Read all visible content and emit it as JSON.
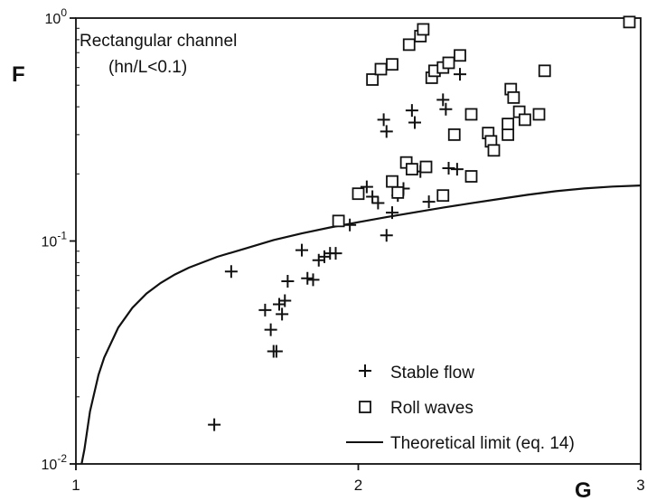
{
  "chart_data": {
    "type": "scatter",
    "title": "Rectangular channel",
    "subtitle": "(hn/L<0.1)",
    "xlabel": "G",
    "ylabel": "F",
    "xlim": [
      1,
      3
    ],
    "ylim": [
      0.01,
      1
    ],
    "yscale": "log",
    "x_ticks": [
      1,
      2,
      3
    ],
    "x_tick_labels": [
      "1",
      "2",
      "3"
    ],
    "y_ticks": [
      0.01,
      0.1,
      1
    ],
    "y_tick_labels": [
      {
        "base": "10",
        "exp": "-2"
      },
      {
        "base": "10",
        "exp": "-1"
      },
      {
        "base": "10",
        "exp": "0"
      }
    ],
    "legend_position": "bottom-right",
    "grid": false,
    "series": [
      {
        "name": "Stable flow",
        "marker": "plus",
        "points": [
          [
            1.49,
            0.015
          ],
          [
            1.55,
            0.073
          ],
          [
            1.67,
            0.049
          ],
          [
            1.69,
            0.04
          ],
          [
            1.7,
            0.032
          ],
          [
            1.71,
            0.032
          ],
          [
            1.72,
            0.052
          ],
          [
            1.73,
            0.047
          ],
          [
            1.74,
            0.054
          ],
          [
            1.75,
            0.066
          ],
          [
            1.8,
            0.091
          ],
          [
            1.82,
            0.068
          ],
          [
            1.84,
            0.067
          ],
          [
            1.86,
            0.082
          ],
          [
            1.88,
            0.085
          ],
          [
            1.9,
            0.088
          ],
          [
            1.92,
            0.088
          ],
          [
            1.97,
            0.118
          ],
          [
            2.03,
            0.175
          ],
          [
            2.05,
            0.158
          ],
          [
            2.07,
            0.148
          ],
          [
            2.09,
            0.35
          ],
          [
            2.1,
            0.31
          ],
          [
            2.1,
            0.106
          ],
          [
            2.12,
            0.134
          ],
          [
            2.14,
            0.16
          ],
          [
            2.16,
            0.172
          ],
          [
            2.19,
            0.385
          ],
          [
            2.2,
            0.34
          ],
          [
            2.22,
            0.205
          ],
          [
            2.25,
            0.15
          ],
          [
            2.3,
            0.43
          ],
          [
            2.31,
            0.39
          ],
          [
            2.32,
            0.212
          ],
          [
            2.35,
            0.21
          ],
          [
            2.36,
            0.56
          ]
        ]
      },
      {
        "name": "Roll waves",
        "marker": "square",
        "points": [
          [
            1.93,
            0.123
          ],
          [
            2.0,
            0.163
          ],
          [
            2.05,
            0.53
          ],
          [
            2.08,
            0.59
          ],
          [
            2.12,
            0.62
          ],
          [
            2.12,
            0.185
          ],
          [
            2.14,
            0.165
          ],
          [
            2.17,
            0.225
          ],
          [
            2.18,
            0.76
          ],
          [
            2.19,
            0.21
          ],
          [
            2.22,
            0.83
          ],
          [
            2.23,
            0.89
          ],
          [
            2.24,
            0.215
          ],
          [
            2.26,
            0.54
          ],
          [
            2.27,
            0.58
          ],
          [
            2.3,
            0.6
          ],
          [
            2.32,
            0.63
          ],
          [
            2.3,
            0.16
          ],
          [
            2.34,
            0.3
          ],
          [
            2.36,
            0.68
          ],
          [
            2.4,
            0.37
          ],
          [
            2.4,
            0.195
          ],
          [
            2.46,
            0.305
          ],
          [
            2.47,
            0.28
          ],
          [
            2.48,
            0.255
          ],
          [
            2.53,
            0.3
          ],
          [
            2.53,
            0.335
          ],
          [
            2.54,
            0.48
          ],
          [
            2.55,
            0.44
          ],
          [
            2.57,
            0.38
          ],
          [
            2.59,
            0.35
          ],
          [
            2.64,
            0.37
          ],
          [
            2.66,
            0.58
          ],
          [
            2.96,
            0.96
          ]
        ]
      },
      {
        "name": "Theoretical limit (eq. 14)",
        "type": "line",
        "points": [
          [
            1.02,
            0.01
          ],
          [
            1.03,
            0.0116
          ],
          [
            1.05,
            0.0172
          ],
          [
            1.08,
            0.0251
          ],
          [
            1.1,
            0.03
          ],
          [
            1.15,
            0.0409
          ],
          [
            1.2,
            0.0502
          ],
          [
            1.25,
            0.0581
          ],
          [
            1.3,
            0.0648
          ],
          [
            1.35,
            0.0707
          ],
          [
            1.4,
            0.0759
          ],
          [
            1.5,
            0.0849
          ],
          [
            1.6,
            0.0925
          ],
          [
            1.7,
            0.101
          ],
          [
            1.8,
            0.1082
          ],
          [
            1.9,
            0.115
          ],
          [
            2.0,
            0.1214
          ],
          [
            2.1,
            0.128
          ],
          [
            2.2,
            0.1345
          ],
          [
            2.3,
            0.1411
          ],
          [
            2.4,
            0.1477
          ],
          [
            2.5,
            0.1544
          ],
          [
            2.6,
            0.1612
          ],
          [
            2.7,
            0.1673
          ],
          [
            2.8,
            0.1721
          ],
          [
            2.9,
            0.1754
          ],
          [
            3.0,
            0.1775
          ]
        ]
      }
    ]
  }
}
